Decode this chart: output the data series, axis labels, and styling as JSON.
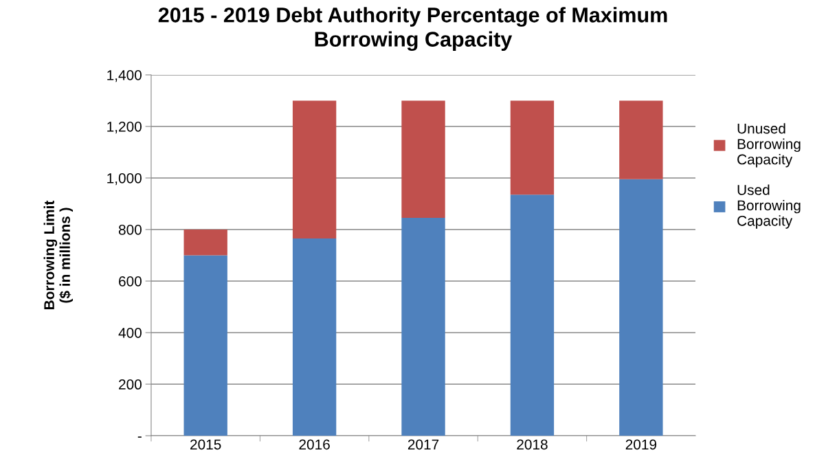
{
  "chart_data": {
    "type": "bar",
    "title": "2015 - 2019 Debt Authority Percentage of Maximum\nBorrowing Capacity",
    "ylabel": "Borrowing Limit\n($ in millions )",
    "categories": [
      "2015",
      "2016",
      "2017",
      "2018",
      "2019"
    ],
    "stacked": true,
    "series": [
      {
        "name": "Used\nBorrowing\nCapacity",
        "color": "#4f81bd",
        "values": [
          700,
          765,
          845,
          935,
          995
        ]
      },
      {
        "name": "Unused\nBorrowing\nCapacity",
        "color": "#c0504d",
        "values": [
          100,
          535,
          455,
          365,
          305
        ]
      }
    ],
    "ylim": [
      0,
      1400
    ],
    "yticks": [
      {
        "value": 0,
        "label": "-"
      },
      {
        "value": 200,
        "label": "200"
      },
      {
        "value": 400,
        "label": "400"
      },
      {
        "value": 600,
        "label": "600"
      },
      {
        "value": 800,
        "label": "800"
      },
      {
        "value": 1000,
        "label": "1,000"
      },
      {
        "value": 1200,
        "label": "1,200"
      },
      {
        "value": 1400,
        "label": "1,400"
      }
    ],
    "grid": "y",
    "legend": "right"
  }
}
